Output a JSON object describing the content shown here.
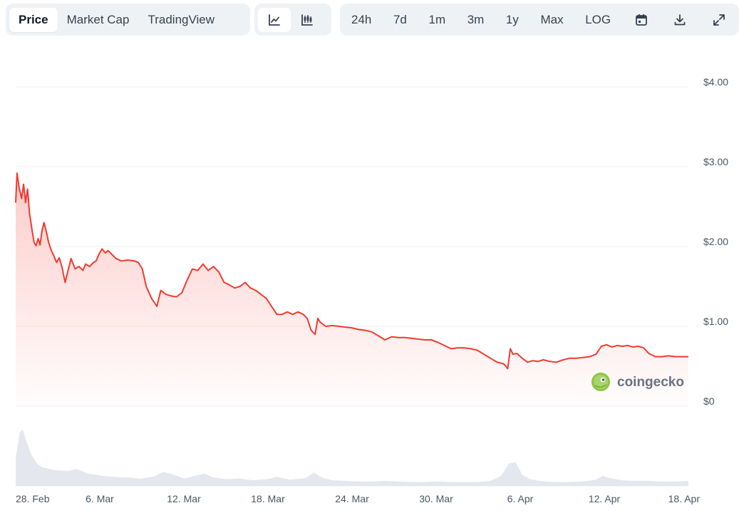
{
  "toolbar": {
    "data_tabs": [
      {
        "label": "Price",
        "active": true
      },
      {
        "label": "Market Cap",
        "active": false
      },
      {
        "label": "TradingView",
        "active": false
      }
    ],
    "chart_type_icons": [
      "line-chart-icon",
      "candlestick-icon"
    ],
    "ranges": [
      {
        "label": "24h"
      },
      {
        "label": "7d"
      },
      {
        "label": "1m"
      },
      {
        "label": "3m"
      },
      {
        "label": "1y"
      },
      {
        "label": "Max"
      },
      {
        "label": "LOG"
      }
    ],
    "tool_icons": [
      "calendar-icon",
      "download-icon",
      "expand-icon"
    ]
  },
  "watermark": {
    "text": "coingecko",
    "icon": "coingecko-logo-icon"
  },
  "colors": {
    "line": "#f23a2f",
    "fill_top": "#fcc9c6",
    "grid": "#eceff3",
    "volume": "#e4e8ee"
  },
  "chart_data": {
    "type": "area",
    "x_ticks": [
      "28. Feb",
      "6. Mar",
      "12. Mar",
      "18. Mar",
      "24. Mar",
      "30. Mar",
      "6. Apr",
      "12. Apr",
      "18. Apr"
    ],
    "y_ticks": [
      "$4.00",
      "$3.00",
      "$2.00",
      "$1.00",
      "$0"
    ],
    "ylim": [
      0,
      4
    ],
    "x_range_days": [
      0,
      51
    ],
    "series": [
      {
        "values": [
          [
            0.0,
            2.55
          ],
          [
            0.1,
            2.92
          ],
          [
            0.25,
            2.75
          ],
          [
            0.45,
            2.6
          ],
          [
            0.6,
            2.78
          ],
          [
            0.75,
            2.55
          ],
          [
            0.9,
            2.72
          ],
          [
            1.05,
            2.42
          ],
          [
            1.25,
            2.2
          ],
          [
            1.4,
            2.05
          ],
          [
            1.55,
            2.01
          ],
          [
            1.7,
            2.1
          ],
          [
            1.85,
            2.02
          ],
          [
            2.0,
            2.2
          ],
          [
            2.15,
            2.3
          ],
          [
            2.3,
            2.2
          ],
          [
            2.5,
            2.05
          ],
          [
            2.7,
            1.95
          ],
          [
            2.9,
            1.88
          ],
          [
            3.1,
            1.8
          ],
          [
            3.3,
            1.86
          ],
          [
            3.5,
            1.75
          ],
          [
            3.75,
            1.55
          ],
          [
            4.0,
            1.72
          ],
          [
            4.2,
            1.85
          ],
          [
            4.5,
            1.72
          ],
          [
            4.8,
            1.75
          ],
          [
            5.1,
            1.7
          ],
          [
            5.3,
            1.78
          ],
          [
            5.6,
            1.75
          ],
          [
            5.9,
            1.8
          ],
          [
            6.1,
            1.82
          ],
          [
            6.3,
            1.9
          ],
          [
            6.55,
            1.97
          ],
          [
            6.8,
            1.92
          ],
          [
            7.0,
            1.95
          ],
          [
            7.3,
            1.9
          ],
          [
            7.6,
            1.85
          ],
          [
            8.0,
            1.82
          ],
          [
            8.5,
            1.83
          ],
          [
            9.0,
            1.82
          ],
          [
            9.3,
            1.8
          ],
          [
            9.6,
            1.72
          ],
          [
            9.9,
            1.5
          ],
          [
            10.3,
            1.35
          ],
          [
            10.7,
            1.25
          ],
          [
            11.0,
            1.45
          ],
          [
            11.4,
            1.4
          ],
          [
            11.8,
            1.38
          ],
          [
            12.2,
            1.37
          ],
          [
            12.6,
            1.42
          ],
          [
            13.0,
            1.58
          ],
          [
            13.4,
            1.72
          ],
          [
            13.8,
            1.7
          ],
          [
            14.2,
            1.78
          ],
          [
            14.6,
            1.7
          ],
          [
            15.0,
            1.75
          ],
          [
            15.4,
            1.68
          ],
          [
            15.8,
            1.55
          ],
          [
            16.2,
            1.52
          ],
          [
            16.6,
            1.48
          ],
          [
            17.0,
            1.5
          ],
          [
            17.4,
            1.55
          ],
          [
            17.8,
            1.48
          ],
          [
            18.2,
            1.45
          ],
          [
            18.6,
            1.4
          ],
          [
            19.0,
            1.35
          ],
          [
            19.4,
            1.25
          ],
          [
            19.8,
            1.15
          ],
          [
            20.2,
            1.15
          ],
          [
            20.6,
            1.18
          ],
          [
            21.0,
            1.15
          ],
          [
            21.4,
            1.18
          ],
          [
            21.8,
            1.15
          ],
          [
            22.1,
            1.1
          ],
          [
            22.4,
            0.95
          ],
          [
            22.7,
            0.9
          ],
          [
            22.9,
            1.1
          ],
          [
            23.1,
            1.05
          ],
          [
            23.5,
            1.0
          ],
          [
            24.0,
            1.01
          ],
          [
            24.5,
            1.0
          ],
          [
            25.0,
            0.99
          ],
          [
            25.5,
            0.98
          ],
          [
            26.0,
            0.96
          ],
          [
            26.5,
            0.95
          ],
          [
            27.0,
            0.93
          ],
          [
            27.5,
            0.88
          ],
          [
            28.0,
            0.83
          ],
          [
            28.5,
            0.87
          ],
          [
            29.0,
            0.86
          ],
          [
            29.5,
            0.86
          ],
          [
            30.0,
            0.85
          ],
          [
            30.5,
            0.84
          ],
          [
            31.0,
            0.83
          ],
          [
            31.5,
            0.83
          ],
          [
            32.0,
            0.8
          ],
          [
            32.5,
            0.76
          ],
          [
            33.0,
            0.72
          ],
          [
            33.5,
            0.73
          ],
          [
            34.0,
            0.73
          ],
          [
            34.5,
            0.72
          ],
          [
            35.0,
            0.7
          ],
          [
            35.5,
            0.65
          ],
          [
            36.0,
            0.6
          ],
          [
            36.5,
            0.55
          ],
          [
            37.0,
            0.53
          ],
          [
            37.3,
            0.47
          ],
          [
            37.5,
            0.72
          ],
          [
            37.7,
            0.65
          ],
          [
            38.0,
            0.66
          ],
          [
            38.4,
            0.6
          ],
          [
            38.8,
            0.55
          ],
          [
            39.2,
            0.57
          ],
          [
            39.6,
            0.56
          ],
          [
            40.0,
            0.58
          ],
          [
            40.5,
            0.56
          ],
          [
            41.0,
            0.55
          ],
          [
            41.5,
            0.58
          ],
          [
            42.0,
            0.6
          ],
          [
            42.5,
            0.6
          ],
          [
            43.0,
            0.61
          ],
          [
            43.5,
            0.62
          ],
          [
            44.0,
            0.65
          ],
          [
            44.4,
            0.75
          ],
          [
            44.8,
            0.77
          ],
          [
            45.2,
            0.74
          ],
          [
            45.6,
            0.76
          ],
          [
            46.0,
            0.75
          ],
          [
            46.4,
            0.76
          ],
          [
            46.8,
            0.74
          ],
          [
            47.2,
            0.75
          ],
          [
            47.6,
            0.73
          ],
          [
            48.0,
            0.66
          ],
          [
            48.5,
            0.62
          ],
          [
            49.0,
            0.62
          ],
          [
            49.5,
            0.63
          ],
          [
            50.0,
            0.62
          ],
          [
            50.5,
            0.62
          ],
          [
            51.0,
            0.62
          ]
        ]
      }
    ],
    "volume": [
      [
        0.0,
        0.5
      ],
      [
        0.3,
        0.95
      ],
      [
        0.55,
        1.0
      ],
      [
        0.8,
        0.8
      ],
      [
        1.2,
        0.55
      ],
      [
        1.6,
        0.4
      ],
      [
        2.0,
        0.33
      ],
      [
        3.0,
        0.28
      ],
      [
        4.0,
        0.27
      ],
      [
        4.6,
        0.3
      ],
      [
        5.5,
        0.22
      ],
      [
        6.5,
        0.18
      ],
      [
        7.5,
        0.16
      ],
      [
        8.5,
        0.15
      ],
      [
        9.5,
        0.13
      ],
      [
        10.5,
        0.17
      ],
      [
        11.2,
        0.25
      ],
      [
        12.0,
        0.2
      ],
      [
        12.8,
        0.13
      ],
      [
        13.6,
        0.18
      ],
      [
        14.3,
        0.22
      ],
      [
        15.0,
        0.15
      ],
      [
        16.0,
        0.12
      ],
      [
        17.0,
        0.13
      ],
      [
        18.0,
        0.1
      ],
      [
        19.0,
        0.12
      ],
      [
        19.8,
        0.16
      ],
      [
        20.8,
        0.11
      ],
      [
        22.0,
        0.14
      ],
      [
        22.6,
        0.24
      ],
      [
        23.2,
        0.15
      ],
      [
        24.0,
        0.1
      ],
      [
        25.0,
        0.09
      ],
      [
        26.0,
        0.08
      ],
      [
        27.0,
        0.08
      ],
      [
        28.0,
        0.09
      ],
      [
        29.0,
        0.08
      ],
      [
        30.0,
        0.07
      ],
      [
        31.0,
        0.07
      ],
      [
        32.0,
        0.08
      ],
      [
        33.0,
        0.07
      ],
      [
        34.0,
        0.07
      ],
      [
        35.0,
        0.07
      ],
      [
        36.0,
        0.09
      ],
      [
        36.8,
        0.18
      ],
      [
        37.4,
        0.4
      ],
      [
        37.9,
        0.42
      ],
      [
        38.4,
        0.2
      ],
      [
        39.0,
        0.12
      ],
      [
        40.0,
        0.08
      ],
      [
        41.0,
        0.07
      ],
      [
        42.0,
        0.07
      ],
      [
        43.0,
        0.08
      ],
      [
        44.0,
        0.11
      ],
      [
        44.5,
        0.18
      ],
      [
        45.0,
        0.14
      ],
      [
        46.0,
        0.1
      ],
      [
        47.0,
        0.09
      ],
      [
        48.0,
        0.09
      ],
      [
        49.0,
        0.08
      ],
      [
        50.0,
        0.08
      ],
      [
        51.0,
        0.09
      ]
    ]
  }
}
